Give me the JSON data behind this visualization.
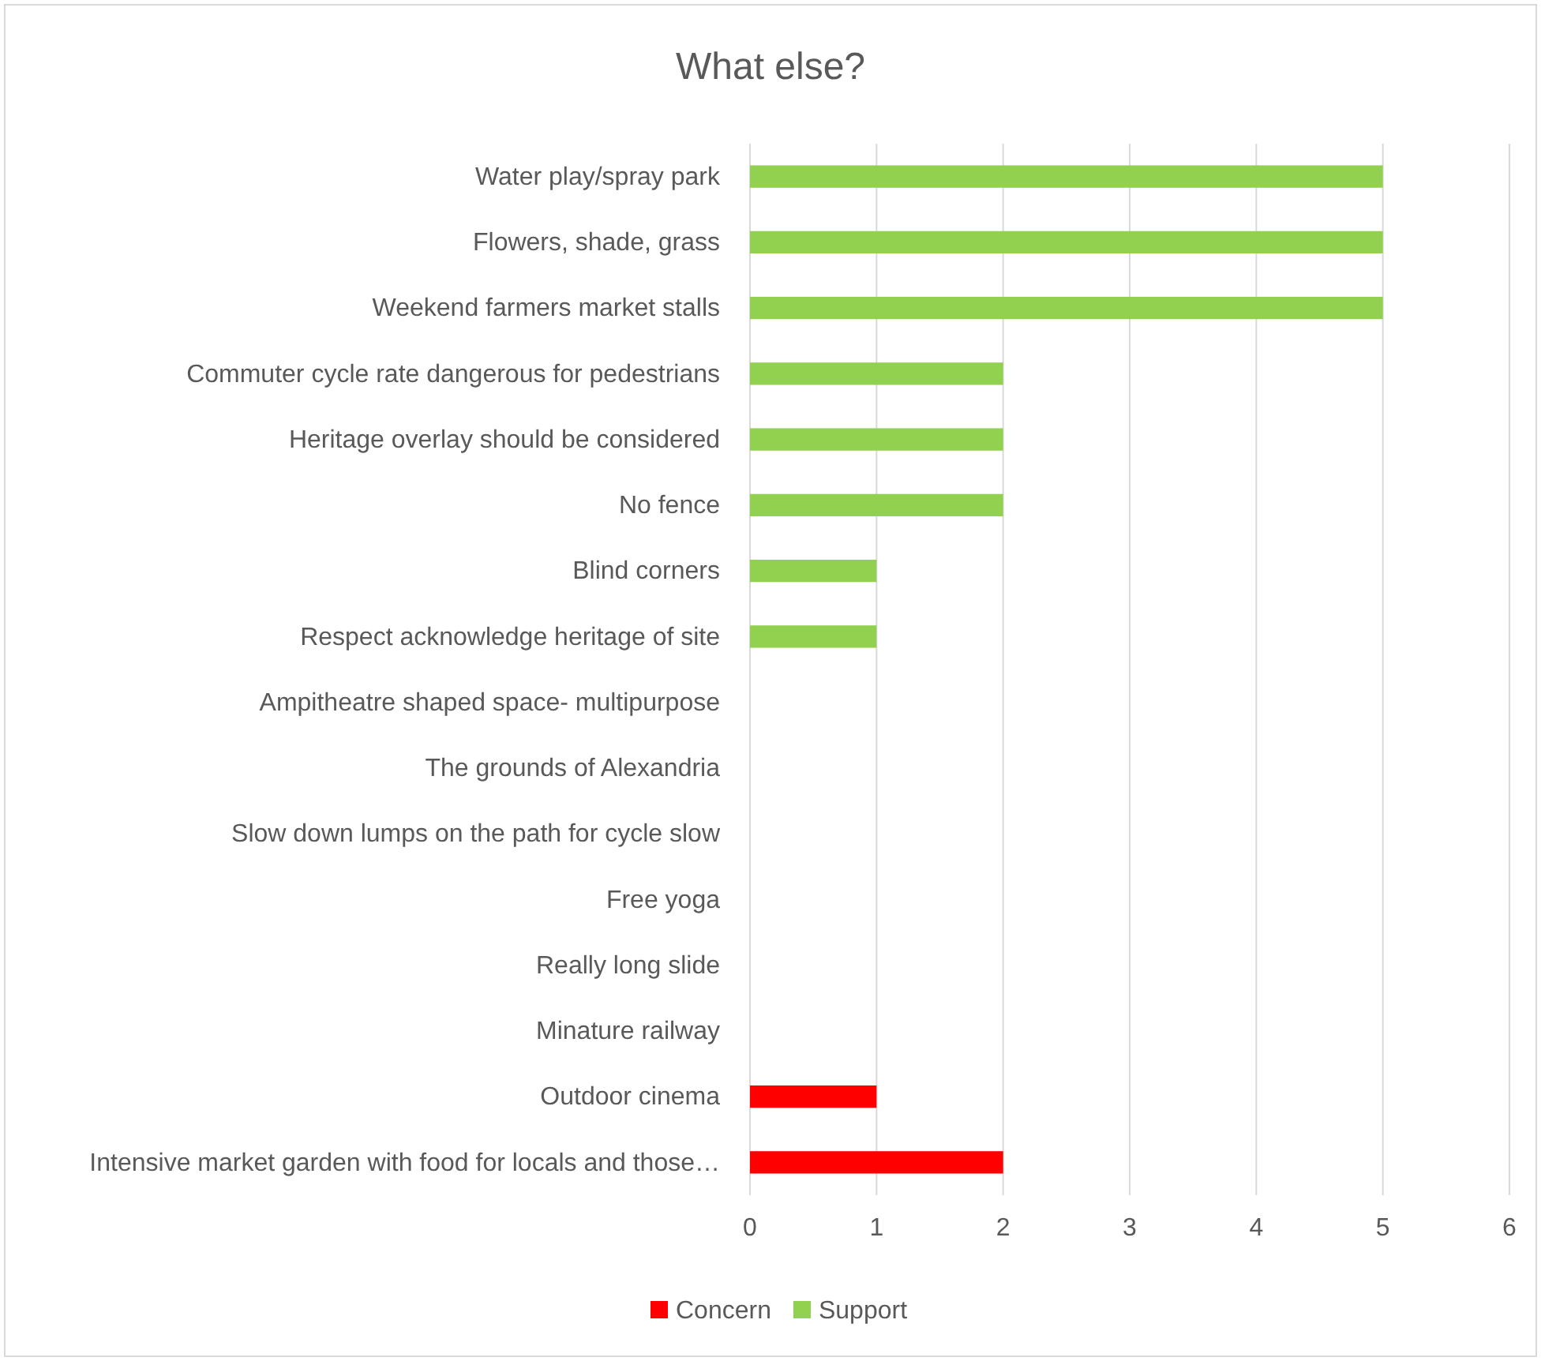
{
  "chart_data": {
    "type": "bar",
    "title": "What else?",
    "orientation": "horizontal",
    "stacked": true,
    "categories": [
      "Water play/spray park",
      "Flowers, shade, grass",
      "Weekend farmers market stalls",
      "Commuter cycle rate dangerous for pedestrians",
      "Heritage overlay should be considered",
      "No fence",
      "Blind corners",
      "Respect acknowledge heritage of site",
      "Ampitheatre shaped space- multipurpose",
      "The grounds of Alexandria",
      "Slow down lumps on the path for cycle slow",
      "Free yoga",
      "Really long slide",
      "Minature railway",
      "Outdoor cinema",
      "Intensive market garden with food for locals and those…"
    ],
    "series": [
      {
        "name": "Concern",
        "color": "#ff0000",
        "values": [
          0,
          0,
          0,
          0,
          0,
          0,
          0,
          0,
          0,
          0,
          0,
          0,
          0,
          0,
          1,
          2
        ]
      },
      {
        "name": "Support",
        "color": "#92d050",
        "values": [
          5,
          5,
          5,
          2,
          2,
          2,
          1,
          1,
          0,
          0,
          0,
          0,
          0,
          0,
          0,
          0
        ]
      }
    ],
    "xlim": [
      0,
      6
    ],
    "xticks": [
      0,
      1,
      2,
      3,
      4,
      5,
      6
    ],
    "grid": "x",
    "legend": "bottom"
  }
}
